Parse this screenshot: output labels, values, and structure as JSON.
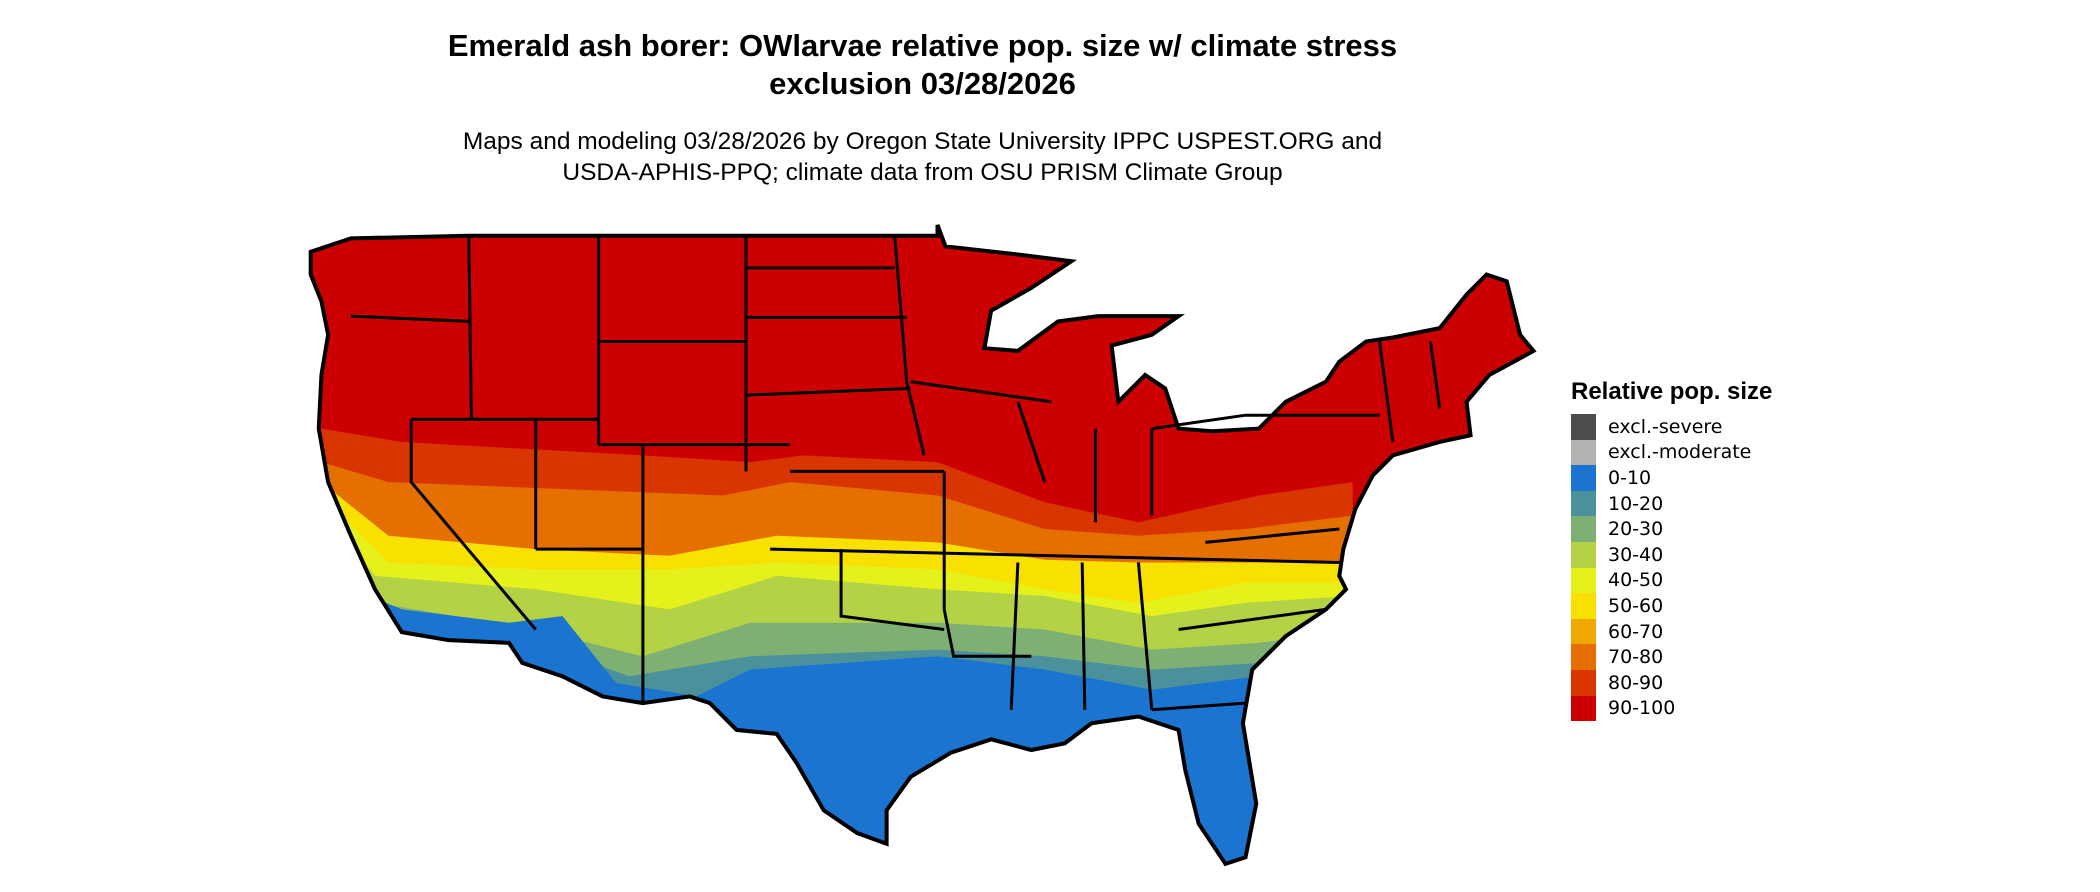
{
  "title": {
    "line1": "Emerald ash borer: OWlarvae relative pop. size w/ climate stress",
    "line2": "exclusion 03/28/2026"
  },
  "subtitle": {
    "line1": "Maps and modeling 03/28/2026 by Oregon State University IPPC USPEST.ORG and",
    "line2": "USDA-APHIS-PPQ; climate data from OSU PRISM Climate Group"
  },
  "legend": {
    "title": "Relative pop. size",
    "items": [
      {
        "label": "excl.-severe",
        "color": "#4d4d4d"
      },
      {
        "label": "excl.-moderate",
        "color": "#b3b3b3"
      },
      {
        "label": "0-10",
        "color": "#1a74d0"
      },
      {
        "label": "10-20",
        "color": "#4a919b"
      },
      {
        "label": "20-30",
        "color": "#7eb074"
      },
      {
        "label": "30-40",
        "color": "#b3d246"
      },
      {
        "label": "40-50",
        "color": "#e6f01a"
      },
      {
        "label": "50-60",
        "color": "#f8e000"
      },
      {
        "label": "60-70",
        "color": "#f0a800"
      },
      {
        "label": "70-80",
        "color": "#e57000"
      },
      {
        "label": "80-90",
        "color": "#d93500"
      },
      {
        "label": "90-100",
        "color": "#cc0000"
      }
    ]
  },
  "map": {
    "region": "Conterminous United States",
    "pattern": "90-100 across the north, decreasing southward to 0-10 along the Gulf Coast, Florida, southern Texas and southern California/Arizona"
  }
}
